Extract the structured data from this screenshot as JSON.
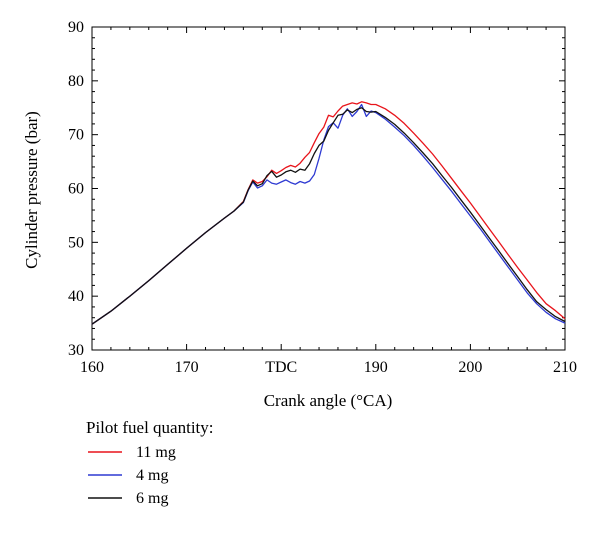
{
  "chart_data": {
    "type": "line",
    "xlabel": "Crank angle (°CA)",
    "ylabel": "Cylinder pressure (bar)",
    "xlim": [
      160,
      210
    ],
    "ylim": [
      30,
      90
    ],
    "xticks": [
      160,
      170,
      180,
      190,
      200,
      210
    ],
    "xtick_labels": [
      "160",
      "170",
      "TDC",
      "190",
      "200",
      "210"
    ],
    "yticks": [
      30,
      40,
      50,
      60,
      70,
      80,
      90
    ],
    "ytick_labels": [
      "30",
      "40",
      "50",
      "60",
      "70",
      "80",
      "90"
    ],
    "grid": false,
    "legend": {
      "title": "Pilot fuel quantity:",
      "placement": "below"
    },
    "series": [
      {
        "name": "11 mg",
        "color": "#e8141b",
        "x": [
          160,
          162,
          164,
          166,
          168,
          170,
          172,
          174,
          175,
          176,
          176.5,
          177,
          177.5,
          178,
          178.5,
          179,
          179.5,
          180,
          180.5,
          181,
          181.5,
          182,
          182.5,
          183,
          183.5,
          184,
          184.5,
          185,
          185.5,
          186,
          186.5,
          187,
          187.5,
          188,
          188.5,
          189,
          189.5,
          190,
          191,
          192,
          193,
          194,
          195,
          196,
          197,
          198,
          199,
          200,
          201,
          202,
          203,
          204,
          205,
          206,
          207,
          208,
          209,
          210
        ],
        "y": [
          34.8,
          37.2,
          40.0,
          42.9,
          45.9,
          48.9,
          51.8,
          54.5,
          55.8,
          57.6,
          59.8,
          61.6,
          61.0,
          61.3,
          62.2,
          63.4,
          62.8,
          63.3,
          63.9,
          64.3,
          64.0,
          64.7,
          65.8,
          66.7,
          68.5,
          70.2,
          71.4,
          73.6,
          73.3,
          74.4,
          75.3,
          75.6,
          75.9,
          75.7,
          76.1,
          75.9,
          75.6,
          75.6,
          74.8,
          73.6,
          72.1,
          70.3,
          68.4,
          66.4,
          64.2,
          61.9,
          59.6,
          57.3,
          54.9,
          52.5,
          50.1,
          47.7,
          45.3,
          43.0,
          40.7,
          38.6,
          37.3,
          35.8
        ]
      },
      {
        "name": "4 mg",
        "color": "#2e3ad2",
        "x": [
          160,
          162,
          164,
          166,
          168,
          170,
          172,
          174,
          175,
          176,
          176.5,
          177,
          177.5,
          178,
          178.5,
          179,
          179.5,
          180,
          180.5,
          181,
          181.5,
          182,
          182.5,
          183,
          183.5,
          184,
          184.5,
          185,
          185.5,
          186,
          186.5,
          187,
          187.5,
          188,
          188.5,
          189,
          189.5,
          190,
          191,
          192,
          193,
          194,
          195,
          196,
          197,
          198,
          199,
          200,
          201,
          202,
          203,
          204,
          205,
          206,
          207,
          208,
          209,
          210
        ],
        "y": [
          34.8,
          37.2,
          40.0,
          42.9,
          45.9,
          48.9,
          51.8,
          54.5,
          55.8,
          57.4,
          59.6,
          61.2,
          60.1,
          60.5,
          61.6,
          61.0,
          60.8,
          61.2,
          61.6,
          61.1,
          60.8,
          61.3,
          61.0,
          61.4,
          62.6,
          65.6,
          69.0,
          71.5,
          72.2,
          71.2,
          73.6,
          74.8,
          73.4,
          74.3,
          75.6,
          73.4,
          74.4,
          74.1,
          72.9,
          71.4,
          69.8,
          68.0,
          66.0,
          63.9,
          61.7,
          59.5,
          57.2,
          54.9,
          52.6,
          50.2,
          47.8,
          45.4,
          43.0,
          40.6,
          38.6,
          37.0,
          35.8,
          35.0
        ]
      },
      {
        "name": "6 mg",
        "color": "#111111",
        "x": [
          160,
          162,
          164,
          166,
          168,
          170,
          172,
          174,
          175,
          176,
          176.5,
          177,
          177.5,
          178,
          178.5,
          179,
          179.5,
          180,
          180.5,
          181,
          181.5,
          182,
          182.5,
          183,
          183.5,
          184,
          184.5,
          185,
          185.5,
          186,
          186.5,
          187,
          187.5,
          188,
          188.5,
          189,
          189.5,
          190,
          191,
          192,
          193,
          194,
          195,
          196,
          197,
          198,
          199,
          200,
          201,
          202,
          203,
          204,
          205,
          206,
          207,
          208,
          209,
          210
        ],
        "y": [
          34.8,
          37.2,
          40.0,
          42.9,
          45.9,
          48.9,
          51.8,
          54.5,
          55.8,
          57.5,
          59.7,
          61.4,
          60.5,
          60.9,
          62.4,
          63.2,
          62.1,
          62.5,
          63.1,
          63.4,
          63.0,
          63.6,
          63.4,
          64.6,
          66.5,
          68.0,
          68.8,
          70.8,
          72.2,
          73.6,
          73.8,
          74.6,
          74.1,
          74.7,
          75.0,
          74.3,
          74.2,
          74.3,
          73.2,
          71.9,
          70.3,
          68.5,
          66.6,
          64.6,
          62.4,
          60.2,
          57.9,
          55.6,
          53.2,
          50.8,
          48.4,
          46.0,
          43.6,
          41.2,
          39.0,
          37.5,
          36.2,
          35.3
        ]
      }
    ]
  }
}
